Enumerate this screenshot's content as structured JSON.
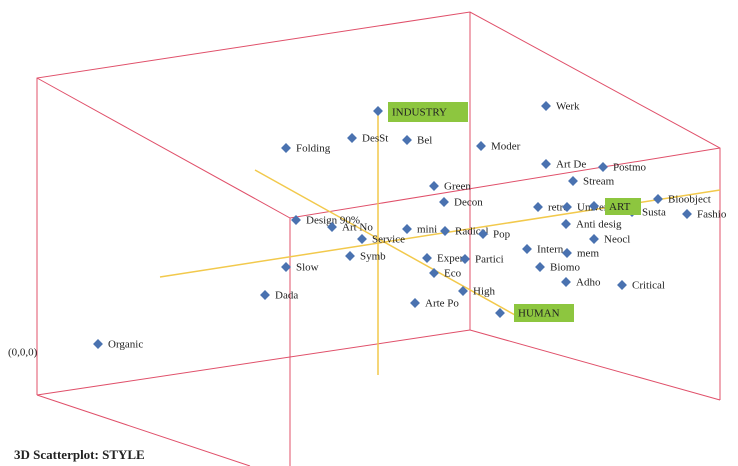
{
  "title": "3D Scatterplot: STYLE",
  "origin_label": "(0,0,0)",
  "axis_labels": [
    "INDUSTRY",
    "ART",
    "HUMAN"
  ],
  "points": [
    "Werk",
    "DesSt",
    "Bel",
    "Folding",
    "Moder",
    "Art De",
    "Postmo",
    "Stream",
    "Green",
    "Decon",
    "retro",
    "Univer",
    "Bioobject",
    "Susta",
    "Fashio",
    "Design 90%",
    "Art No",
    "mini",
    "Radical",
    "Pop",
    "Anti desig",
    "Service",
    "Neocl",
    "Intern",
    "mem",
    "Slow",
    "Symb",
    "Exper",
    "Partici",
    "Biomo",
    "Eco",
    "Adho",
    "Critical",
    "High",
    "Dada",
    "Arte Po",
    "Organic"
  ]
}
